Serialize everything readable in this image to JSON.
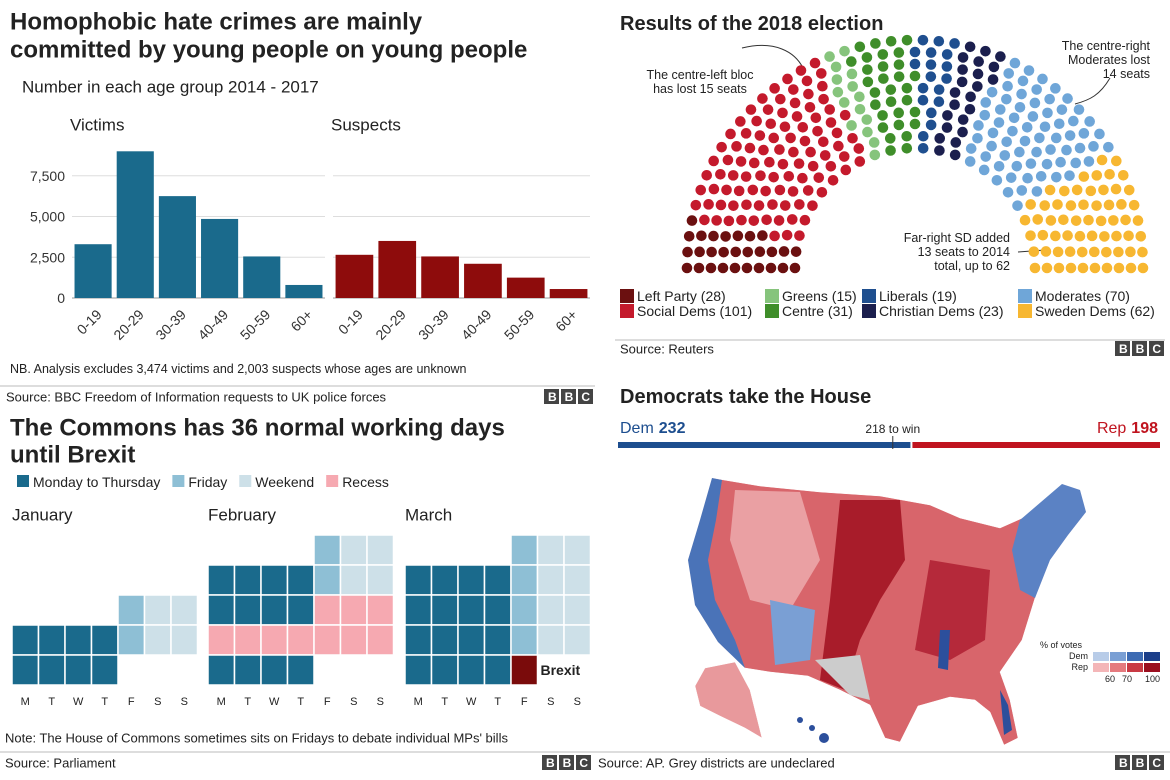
{
  "logo": "BBC",
  "chart_data": [
    {
      "type": "bar",
      "title": [
        "Homophobic hate crimes are mainly",
        "committed by young people on young people"
      ],
      "subtitle": "Number in each age group 2014 - 2017",
      "categories": [
        "0-19",
        "20-29",
        "30-39",
        "40-49",
        "50-59",
        "60+"
      ],
      "series": [
        {
          "name": "Victims",
          "color": "#1a6a8c",
          "values": [
            3300,
            9000,
            6250,
            4850,
            2550,
            800
          ]
        },
        {
          "name": "Suspects",
          "color": "#8e0c0c",
          "values": [
            2650,
            3500,
            2550,
            2100,
            1250,
            550
          ]
        }
      ],
      "facet": true,
      "ylim": [
        0,
        10000
      ],
      "yticks": [
        0,
        {
          "value": 2500,
          "label": "2,500"
        },
        {
          "value": 5000,
          "label": "5,000"
        },
        {
          "value": 7500,
          "label": "7,500"
        }
      ],
      "grid": true,
      "note": "NB. Analysis excludes 3,474 victims and 2,003 suspects whose ages are unknown",
      "source": "Source: BBC Freedom of Information requests to UK police forces"
    },
    {
      "type": "parliament",
      "title": "Results of the 2018 election",
      "categories": [
        "Left Party (28)",
        "Social Dems (101)",
        "Greens (15)",
        "Centre (31)",
        "Liberals (19)",
        "Christian Dems (23)",
        "Moderates (70)",
        "Sweden Dems (62)"
      ],
      "values": [
        28,
        101,
        15,
        31,
        19,
        23,
        70,
        62
      ],
      "colors": [
        "#6b1010",
        "#c41a2c",
        "#86c47c",
        "#3f8e2a",
        "#1f4f8f",
        "#1b1f4e",
        "#6fa6d8",
        "#f7b731"
      ],
      "annotations": [
        {
          "lines": [
            "The centre-left bloc",
            "has lost 15 seats"
          ]
        },
        {
          "lines": [
            "The centre-right",
            "Moderates lost",
            "14 seats"
          ]
        },
        {
          "lines": [
            "Far-right SD added",
            "13 seats to 2014",
            "total, up to 62"
          ]
        }
      ],
      "source": "Source: Reuters"
    },
    {
      "type": "calendar",
      "title": [
        "The Commons has 36 normal working days",
        "until Brexit"
      ],
      "legend": [
        {
          "name": "Monday to Thursday",
          "color": "#1a6a8c"
        },
        {
          "name": "Friday",
          "color": "#8ebfd5"
        },
        {
          "name": "Weekend",
          "color": "#cde0e8"
        },
        {
          "name": "Recess",
          "color": "#f6a9b1"
        }
      ],
      "brexit": {
        "label": "Brexit",
        "color": "#7a0b0b"
      },
      "weekdays": [
        "M",
        "T",
        "W",
        "T",
        "F",
        "S",
        "S"
      ],
      "months": [
        {
          "name": "January",
          "weeks": [
            [
              null,
              null,
              null,
              null,
              1,
              2,
              2
            ],
            [
              0,
              0,
              0,
              0,
              1,
              2,
              2
            ],
            [
              0,
              0,
              0,
              0,
              null,
              null,
              null
            ]
          ]
        },
        {
          "name": "February",
          "weeks": [
            [
              null,
              null,
              null,
              null,
              1,
              2,
              2
            ],
            [
              0,
              0,
              0,
              0,
              1,
              2,
              2
            ],
            [
              0,
              0,
              0,
              0,
              3,
              3,
              3
            ],
            [
              3,
              3,
              3,
              3,
              3,
              3,
              3
            ],
            [
              0,
              0,
              0,
              0,
              null,
              null,
              null
            ]
          ]
        },
        {
          "name": "March",
          "weeks": [
            [
              null,
              null,
              null,
              null,
              1,
              2,
              2
            ],
            [
              0,
              0,
              0,
              0,
              1,
              2,
              2
            ],
            [
              0,
              0,
              0,
              0,
              1,
              2,
              2
            ],
            [
              0,
              0,
              0,
              0,
              1,
              2,
              2
            ],
            [
              0,
              0,
              0,
              0,
              4,
              null,
              null
            ]
          ]
        }
      ],
      "note": "Note: The House of Commons sometimes sits on Fridays to debate individual MPs' bills",
      "source": "Source: Parliament"
    },
    {
      "type": "house",
      "title": "Democrats take the House",
      "dem": {
        "name": "Dem",
        "value": 232,
        "color": "#1d4e8f"
      },
      "rep": {
        "name": "Rep",
        "value": 198,
        "color": "#c0141f"
      },
      "threshold": {
        "value": 218,
        "label": "218 to win"
      },
      "legend": {
        "title": "% of votes",
        "rows": [
          {
            "name": "Dem",
            "colors": [
              "#b8cce8",
              "#7a9fd4",
              "#3d6bb3",
              "#1c3f8a"
            ]
          },
          {
            "name": "Rep",
            "colors": [
              "#f4b6b8",
              "#e57a7e",
              "#c93a44",
              "#9b0f1f"
            ]
          }
        ],
        "ticks": [
          60,
          70,
          100
        ]
      },
      "source": "Source: AP. Grey districts are undeclared"
    }
  ]
}
